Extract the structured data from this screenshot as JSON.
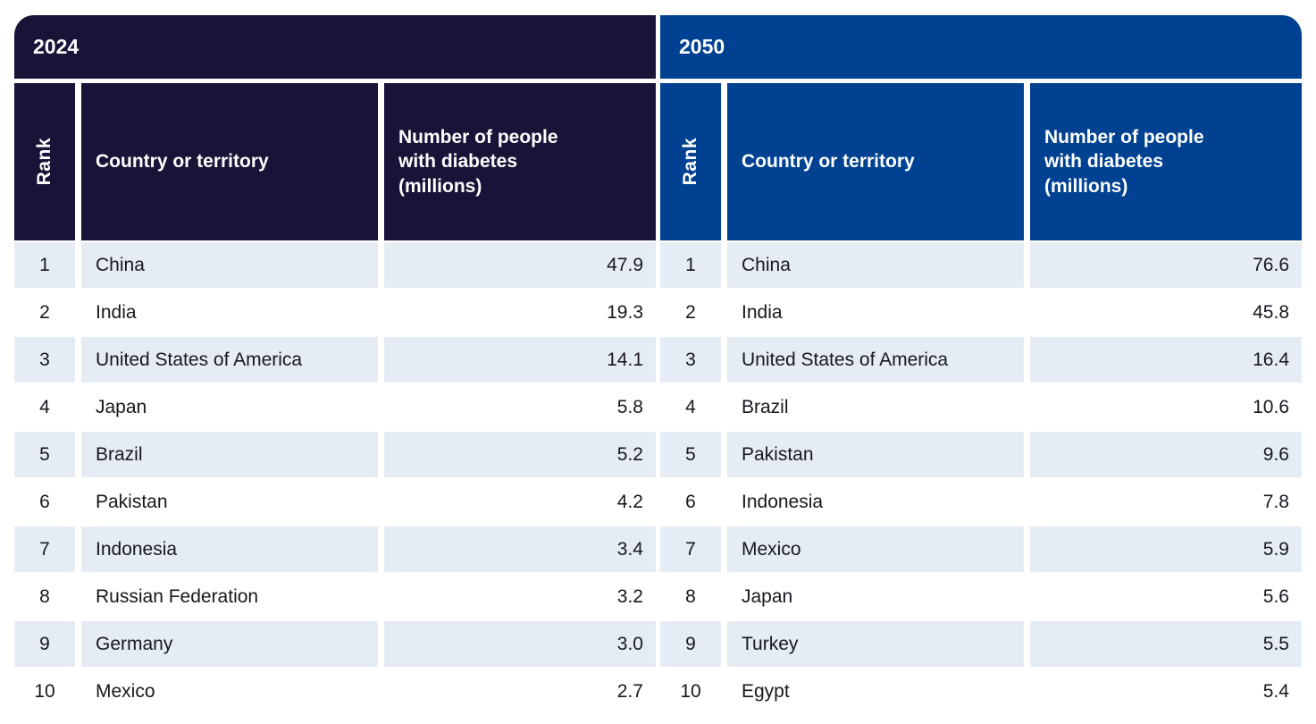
{
  "figure": {
    "description_labels": {
      "rank": "Rank",
      "country": "Country or territory",
      "value": "Number of people\nwith diabetes\n(millions)"
    }
  },
  "colors": {
    "navy_2024": "#1a1338",
    "blue_2050": "#004291",
    "row_alt": "#e6ecf4",
    "header_text": "#ffffff",
    "body_text": "#17171e"
  },
  "chart_data": [
    {
      "type": "table",
      "title": "2024",
      "columns": [
        "Rank",
        "Country or territory",
        "Number of people with diabetes (millions)"
      ],
      "rows": [
        [
          1,
          "China",
          47.9
        ],
        [
          2,
          "India",
          19.3
        ],
        [
          3,
          "United States of America",
          14.1
        ],
        [
          4,
          "Japan",
          5.8
        ],
        [
          5,
          "Brazil",
          5.2
        ],
        [
          6,
          "Pakistan",
          4.2
        ],
        [
          7,
          "Indonesia",
          3.4
        ],
        [
          8,
          "Russian Federation",
          3.2
        ],
        [
          9,
          "Germany",
          3.0
        ],
        [
          10,
          "Mexico",
          2.7
        ]
      ]
    },
    {
      "type": "table",
      "title": "2050",
      "columns": [
        "Rank",
        "Country or territory",
        "Number of people with diabetes (millions)"
      ],
      "rows": [
        [
          1,
          "China",
          76.6
        ],
        [
          2,
          "India",
          45.8
        ],
        [
          3,
          "United States of America",
          16.4
        ],
        [
          4,
          "Brazil",
          10.6
        ],
        [
          5,
          "Pakistan",
          9.6
        ],
        [
          6,
          "Indonesia",
          7.8
        ],
        [
          7,
          "Mexico",
          5.9
        ],
        [
          8,
          "Japan",
          5.6
        ],
        [
          9,
          "Turkey",
          5.5
        ],
        [
          10,
          "Egypt",
          5.4
        ]
      ]
    }
  ]
}
